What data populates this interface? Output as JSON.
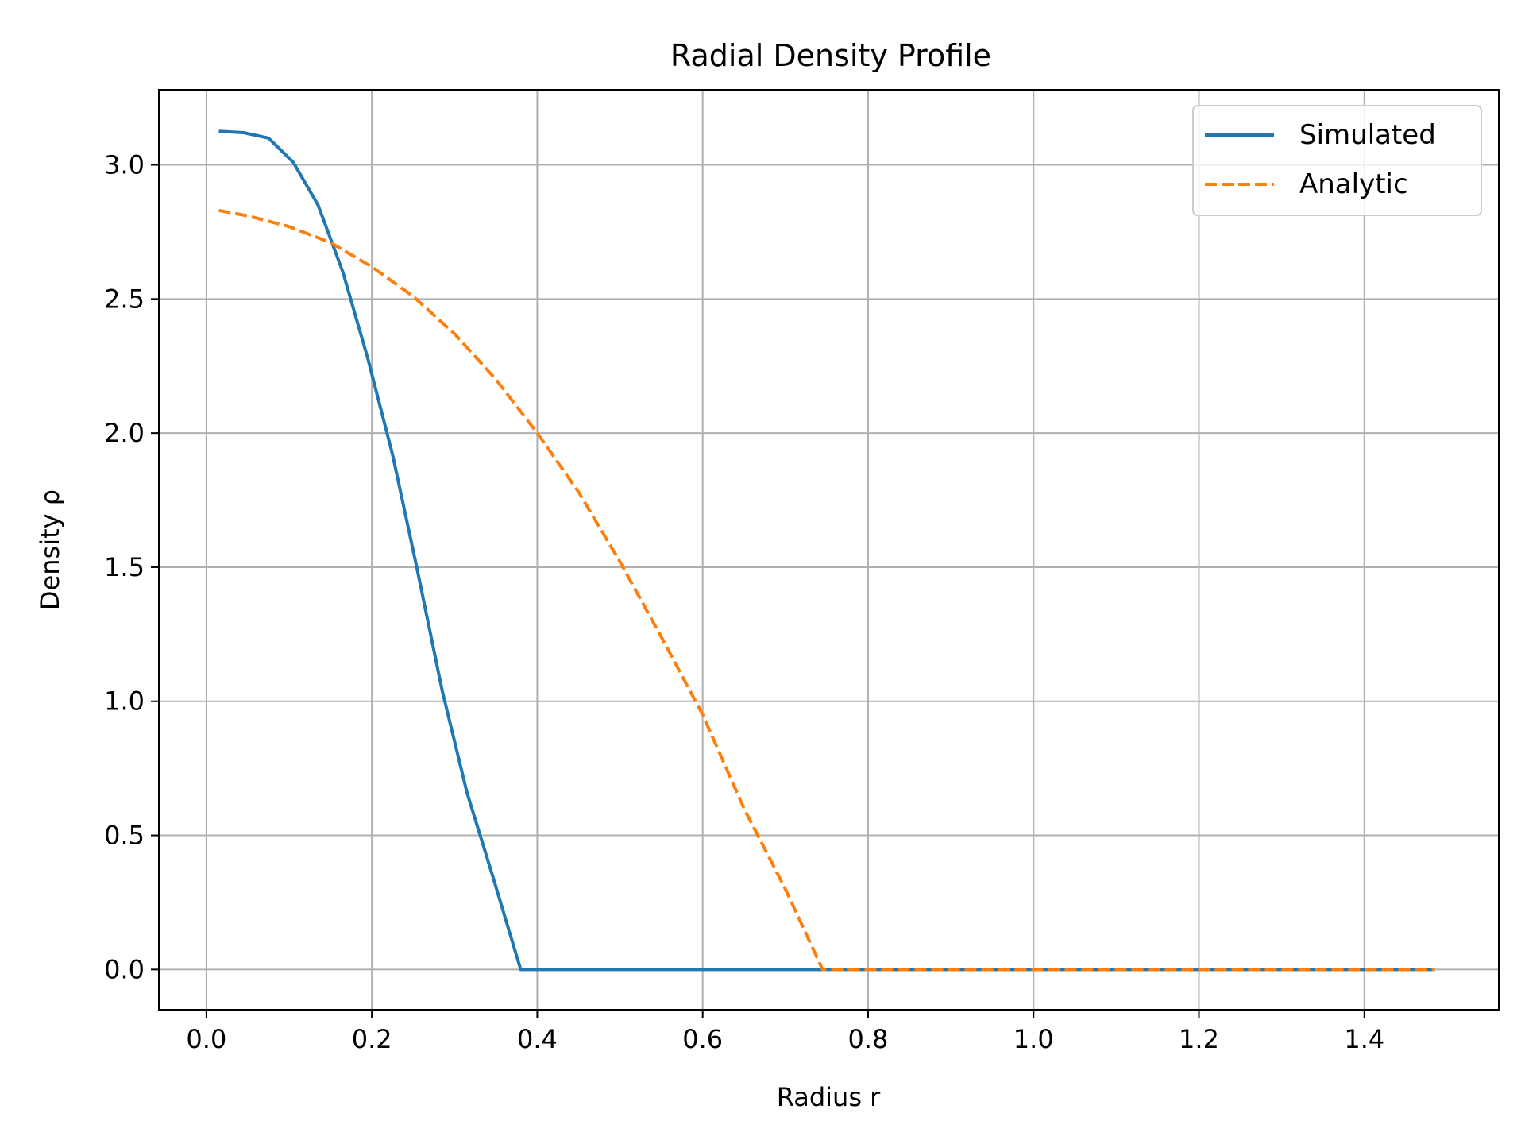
{
  "chart_data": {
    "type": "line",
    "title": "Radial Density Profile",
    "xlabel": "Radius r",
    "ylabel": "Density ρ",
    "xlim": [
      -0.0575,
      1.5625
    ],
    "ylim": [
      -0.15,
      3.28
    ],
    "xticks": [
      0.0,
      0.2,
      0.4,
      0.6,
      0.8,
      1.0,
      1.2,
      1.4
    ],
    "xtick_labels": [
      "0.0",
      "0.2",
      "0.4",
      "0.6",
      "0.8",
      "1.0",
      "1.2",
      "1.4"
    ],
    "yticks": [
      0.0,
      0.5,
      1.0,
      1.5,
      2.0,
      2.5,
      3.0
    ],
    "ytick_labels": [
      "0.0",
      "0.5",
      "1.0",
      "1.5",
      "2.0",
      "2.5",
      "3.0"
    ],
    "grid": true,
    "legend": "top-right",
    "series": [
      {
        "name": "Simulated",
        "color": "#1f77b4",
        "style": "solid",
        "x": [
          0.015,
          0.045,
          0.075,
          0.105,
          0.135,
          0.165,
          0.195,
          0.225,
          0.255,
          0.285,
          0.315,
          0.345,
          0.38,
          0.5,
          0.75,
          1.0,
          1.25,
          1.485
        ],
        "y": [
          3.125,
          3.12,
          3.1,
          3.01,
          2.85,
          2.6,
          2.28,
          1.92,
          1.49,
          1.04,
          0.66,
          0.36,
          0.0,
          0.0,
          0.0,
          0.0,
          0.0,
          0.0
        ]
      },
      {
        "name": "Analytic",
        "color": "#ff7f0e",
        "style": "dashed",
        "x": [
          0.015,
          0.05,
          0.1,
          0.15,
          0.2,
          0.25,
          0.3,
          0.35,
          0.4,
          0.45,
          0.5,
          0.55,
          0.6,
          0.65,
          0.7,
          0.745,
          0.75,
          1.0,
          1.25,
          1.485
        ],
        "y": [
          2.83,
          2.81,
          2.77,
          2.71,
          2.62,
          2.51,
          2.37,
          2.2,
          2.0,
          1.78,
          1.52,
          1.24,
          0.95,
          0.6,
          0.3,
          0.0,
          0.0,
          0.0,
          0.0,
          0.0
        ]
      }
    ]
  }
}
